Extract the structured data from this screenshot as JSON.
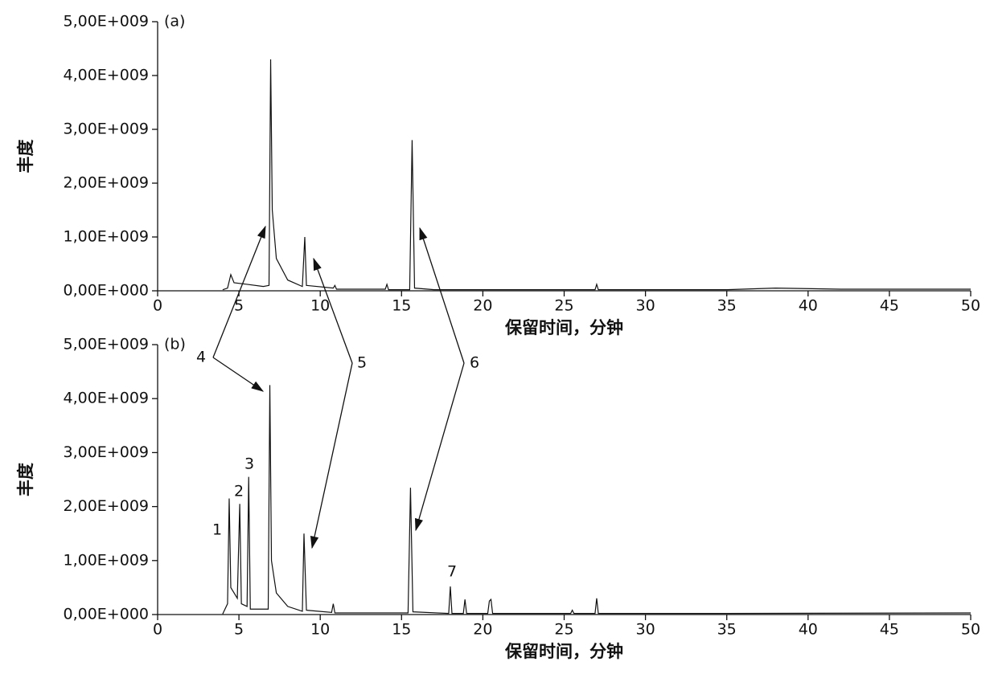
{
  "chart_data": [
    {
      "type": "line",
      "title": "(a)",
      "xlabel": "保留时间，分钟",
      "ylabel": "丰度",
      "color": "#111111",
      "x": [
        4.0,
        4.3,
        4.5,
        4.7,
        5.5,
        6.5,
        6.85,
        6.95,
        7.05,
        7.3,
        8.0,
        8.9,
        9.05,
        9.15,
        10.8,
        10.9,
        11.0,
        14.0,
        14.1,
        14.2,
        15.5,
        15.65,
        15.8,
        17.0,
        26.9,
        27.0,
        27.1,
        35.0,
        38.0,
        42.0,
        50.0
      ],
      "values": [
        20000000.0,
        50000000.0,
        300000000.0,
        150000000.0,
        120000000.0,
        80000000.0,
        100000000.0,
        4300000000.0,
        1500000000.0,
        600000000.0,
        200000000.0,
        80000000.0,
        1000000000.0,
        100000000.0,
        50000000.0,
        100000000.0,
        30000000.0,
        30000000.0,
        120000000.0,
        20000000.0,
        20000000.0,
        2800000000.0,
        50000000.0,
        20000000.0,
        20000000.0,
        120000000.0,
        20000000.0,
        20000000.0,
        50000000.0,
        30000000.0,
        30000000.0
      ],
      "xlim": [
        0,
        50
      ],
      "xticks": [
        0,
        5,
        10,
        15,
        20,
        25,
        30,
        35,
        40,
        45,
        50
      ],
      "ylim": [
        0,
        5000000000.0
      ],
      "yticks": [
        {
          "value": 0,
          "label": "0,00E+000"
        },
        {
          "value": 1000000000.0,
          "label": "1,00E+009"
        },
        {
          "value": 2000000000.0,
          "label": "2,00E+009"
        },
        {
          "value": 3000000000.0,
          "label": "3,00E+009"
        },
        {
          "value": 4000000000.0,
          "label": "4,00E+009"
        },
        {
          "value": 5000000000.0,
          "label": "5,00E+009"
        }
      ]
    },
    {
      "type": "line",
      "title": "(b)",
      "xlabel": "保留时间，分钟",
      "ylabel": "丰度",
      "color": "#111111",
      "x": [
        4.0,
        4.3,
        4.4,
        4.5,
        4.7,
        4.9,
        5.05,
        5.15,
        5.5,
        5.6,
        5.7,
        6.8,
        6.9,
        7.0,
        7.3,
        8.0,
        8.9,
        9.0,
        9.15,
        10.7,
        10.8,
        10.9,
        15.4,
        15.55,
        15.7,
        17.9,
        18.0,
        18.1,
        18.8,
        18.9,
        19.0,
        20.3,
        20.4,
        20.5,
        20.6,
        25.4,
        25.5,
        25.6,
        26.9,
        27.0,
        27.1,
        35.0,
        50.0
      ],
      "values": [
        10000000.0,
        200000000.0,
        2150000000.0,
        500000000.0,
        400000000.0,
        300000000.0,
        2050000000.0,
        200000000.0,
        150000000.0,
        2550000000.0,
        100000000.0,
        100000000.0,
        4250000000.0,
        1000000000.0,
        400000000.0,
        150000000.0,
        60000000.0,
        1500000000.0,
        80000000.0,
        40000000.0,
        200000000.0,
        30000000.0,
        30000000.0,
        2350000000.0,
        50000000.0,
        20000000.0,
        520000000.0,
        20000000.0,
        20000000.0,
        280000000.0,
        20000000.0,
        20000000.0,
        250000000.0,
        280000000.0,
        20000000.0,
        20000000.0,
        80000000.0,
        20000000.0,
        20000000.0,
        300000000.0,
        20000000.0,
        20000000.0,
        30000000.0
      ],
      "xlim": [
        0,
        50
      ],
      "xticks": [
        0,
        5,
        10,
        15,
        20,
        25,
        30,
        35,
        40,
        45,
        50
      ],
      "ylim": [
        0,
        5000000000.0
      ],
      "yticks": [
        {
          "value": 0,
          "label": "0,00E+000"
        },
        {
          "value": 1000000000.0,
          "label": "1,00E+009"
        },
        {
          "value": 2000000000.0,
          "label": "2,00E+009"
        },
        {
          "value": 3000000000.0,
          "label": "3,00E+009"
        },
        {
          "value": 4000000000.0,
          "label": "4,00E+009"
        },
        {
          "value": 5000000000.0,
          "label": "5,00E+009"
        }
      ],
      "annotations": [
        "1",
        "2",
        "3",
        "4",
        "5",
        "6",
        "7"
      ]
    }
  ]
}
